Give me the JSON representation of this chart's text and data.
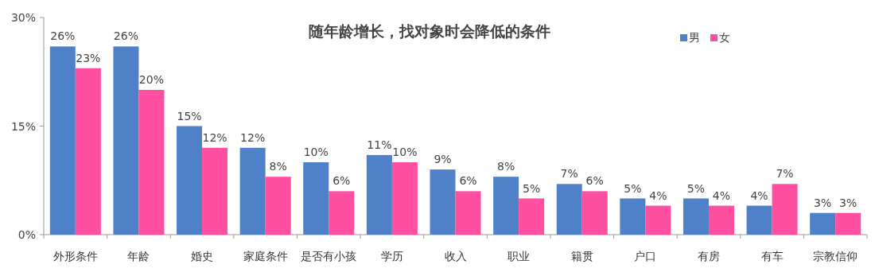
{
  "chart_data": {
    "type": "bar",
    "title": "随年龄增长，找对象时会降低的条件",
    "categories": [
      "外形条件",
      "年龄",
      "婚史",
      "家庭条件",
      "是否有小孩",
      "学历",
      "收入",
      "职业",
      "籍贯",
      "户口",
      "有房",
      "有车",
      "宗教信仰"
    ],
    "series": [
      {
        "name": "男",
        "color": "#4f81c9",
        "values": [
          26,
          26,
          15,
          12,
          10,
          11,
          9,
          8,
          7,
          5,
          5,
          4,
          3
        ],
        "value_labels": [
          "26%",
          "26%",
          "15%",
          "12%",
          "10%",
          "11%",
          "9%",
          "8%",
          "7%",
          "5%",
          "5%",
          "4%",
          "3%"
        ]
      },
      {
        "name": "女",
        "color": "#ff4fa0",
        "values": [
          23,
          20,
          12,
          8,
          6,
          10,
          6,
          5,
          6,
          4,
          4,
          7,
          3
        ],
        "value_labels": [
          "23%",
          "20%",
          "12%",
          "8%",
          "6%",
          "10%",
          "6%",
          "5%",
          "6%",
          "4%",
          "4%",
          "7%",
          "3%"
        ]
      }
    ],
    "ylim": [
      0,
      30
    ],
    "yticks": [
      {
        "value": 0,
        "label": "0%"
      },
      {
        "value": 15,
        "label": "15%"
      },
      {
        "value": 30,
        "label": "30%"
      }
    ],
    "legend": "top right"
  }
}
